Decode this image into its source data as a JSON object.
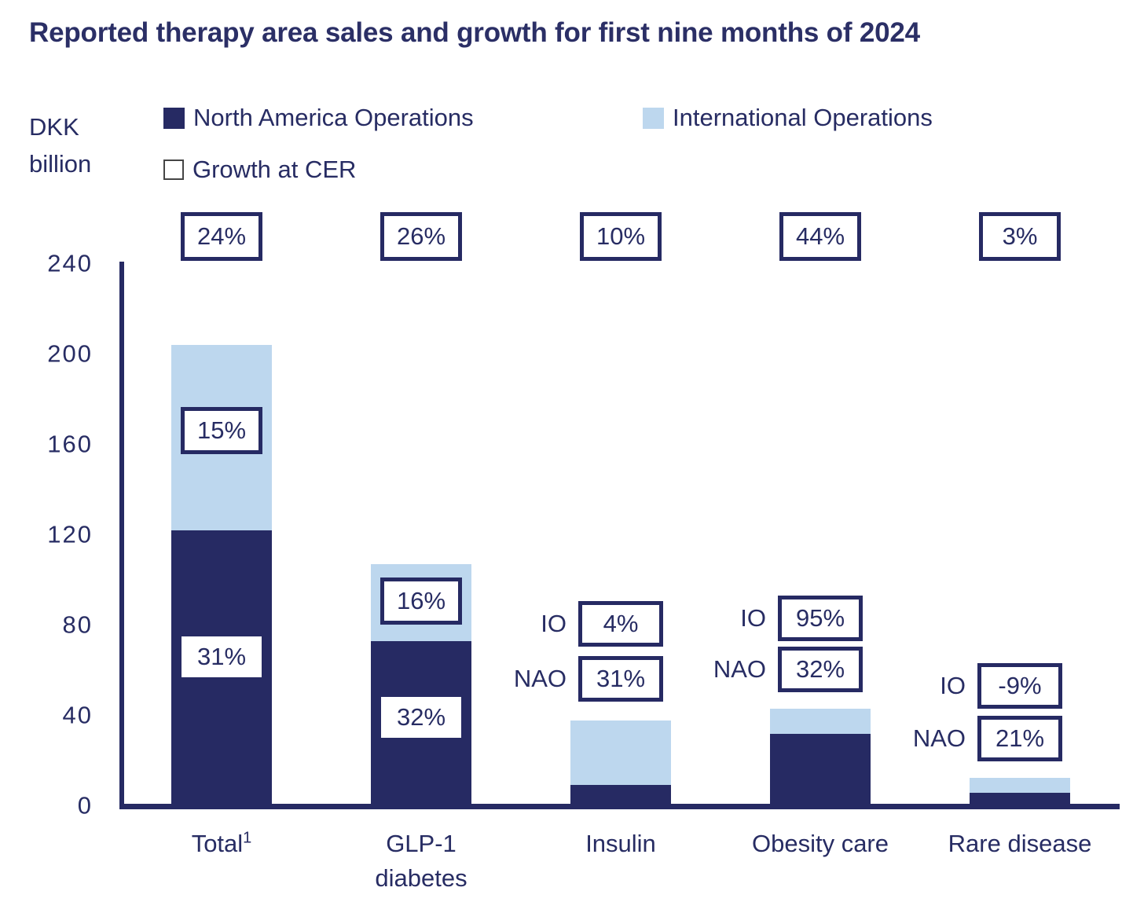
{
  "title": "Reported therapy area sales and growth for first nine months of 2024",
  "y_axis": {
    "unit_label": "DKK billion",
    "ticks": [
      0,
      40,
      80,
      120,
      160,
      200,
      240
    ],
    "max": 240
  },
  "legend": {
    "nao": {
      "label": "North America Operations",
      "abbr": "NAO"
    },
    "io": {
      "label": "International Operations",
      "abbr": "IO"
    },
    "growth": {
      "label": "Growth at CER"
    }
  },
  "colors": {
    "nao_bar": "#262A63",
    "io_bar": "#BDD7EE",
    "text": "#272C63",
    "box_border": "#262A63",
    "growth_swatch_border": "#454545",
    "background": "#FFFFFF"
  },
  "chart_data": {
    "type": "bar",
    "stacked": true,
    "title": "Reported therapy area sales and growth for first nine months of 2024",
    "ylabel": "DKK billion",
    "ylim": [
      0,
      240
    ],
    "yticks": [
      0,
      40,
      80,
      120,
      160,
      200,
      240
    ],
    "grid": false,
    "legend_position": "top",
    "categories": [
      "Total¹",
      "GLP-1 diabetes",
      "Insulin",
      "Obesity care",
      "Rare disease"
    ],
    "series": [
      {
        "name": "North America Operations",
        "abbr": "NAO",
        "color": "#262A63",
        "values": [
          122,
          73,
          9.5,
          32,
          6
        ]
      },
      {
        "name": "International Operations",
        "abbr": "IO",
        "color": "#BDD7EE",
        "values": [
          82,
          34,
          28.5,
          11,
          6.5
        ]
      }
    ],
    "totals": [
      204,
      107,
      38,
      43,
      12.5
    ],
    "growth_at_cer": {
      "total": [
        "24%",
        "26%",
        "10%",
        "44%",
        "3%"
      ],
      "nao": [
        "31%",
        "32%",
        "31%",
        "32%",
        "21%"
      ],
      "io": [
        "15%",
        "16%",
        "4%",
        "95%",
        "-9%"
      ]
    }
  }
}
